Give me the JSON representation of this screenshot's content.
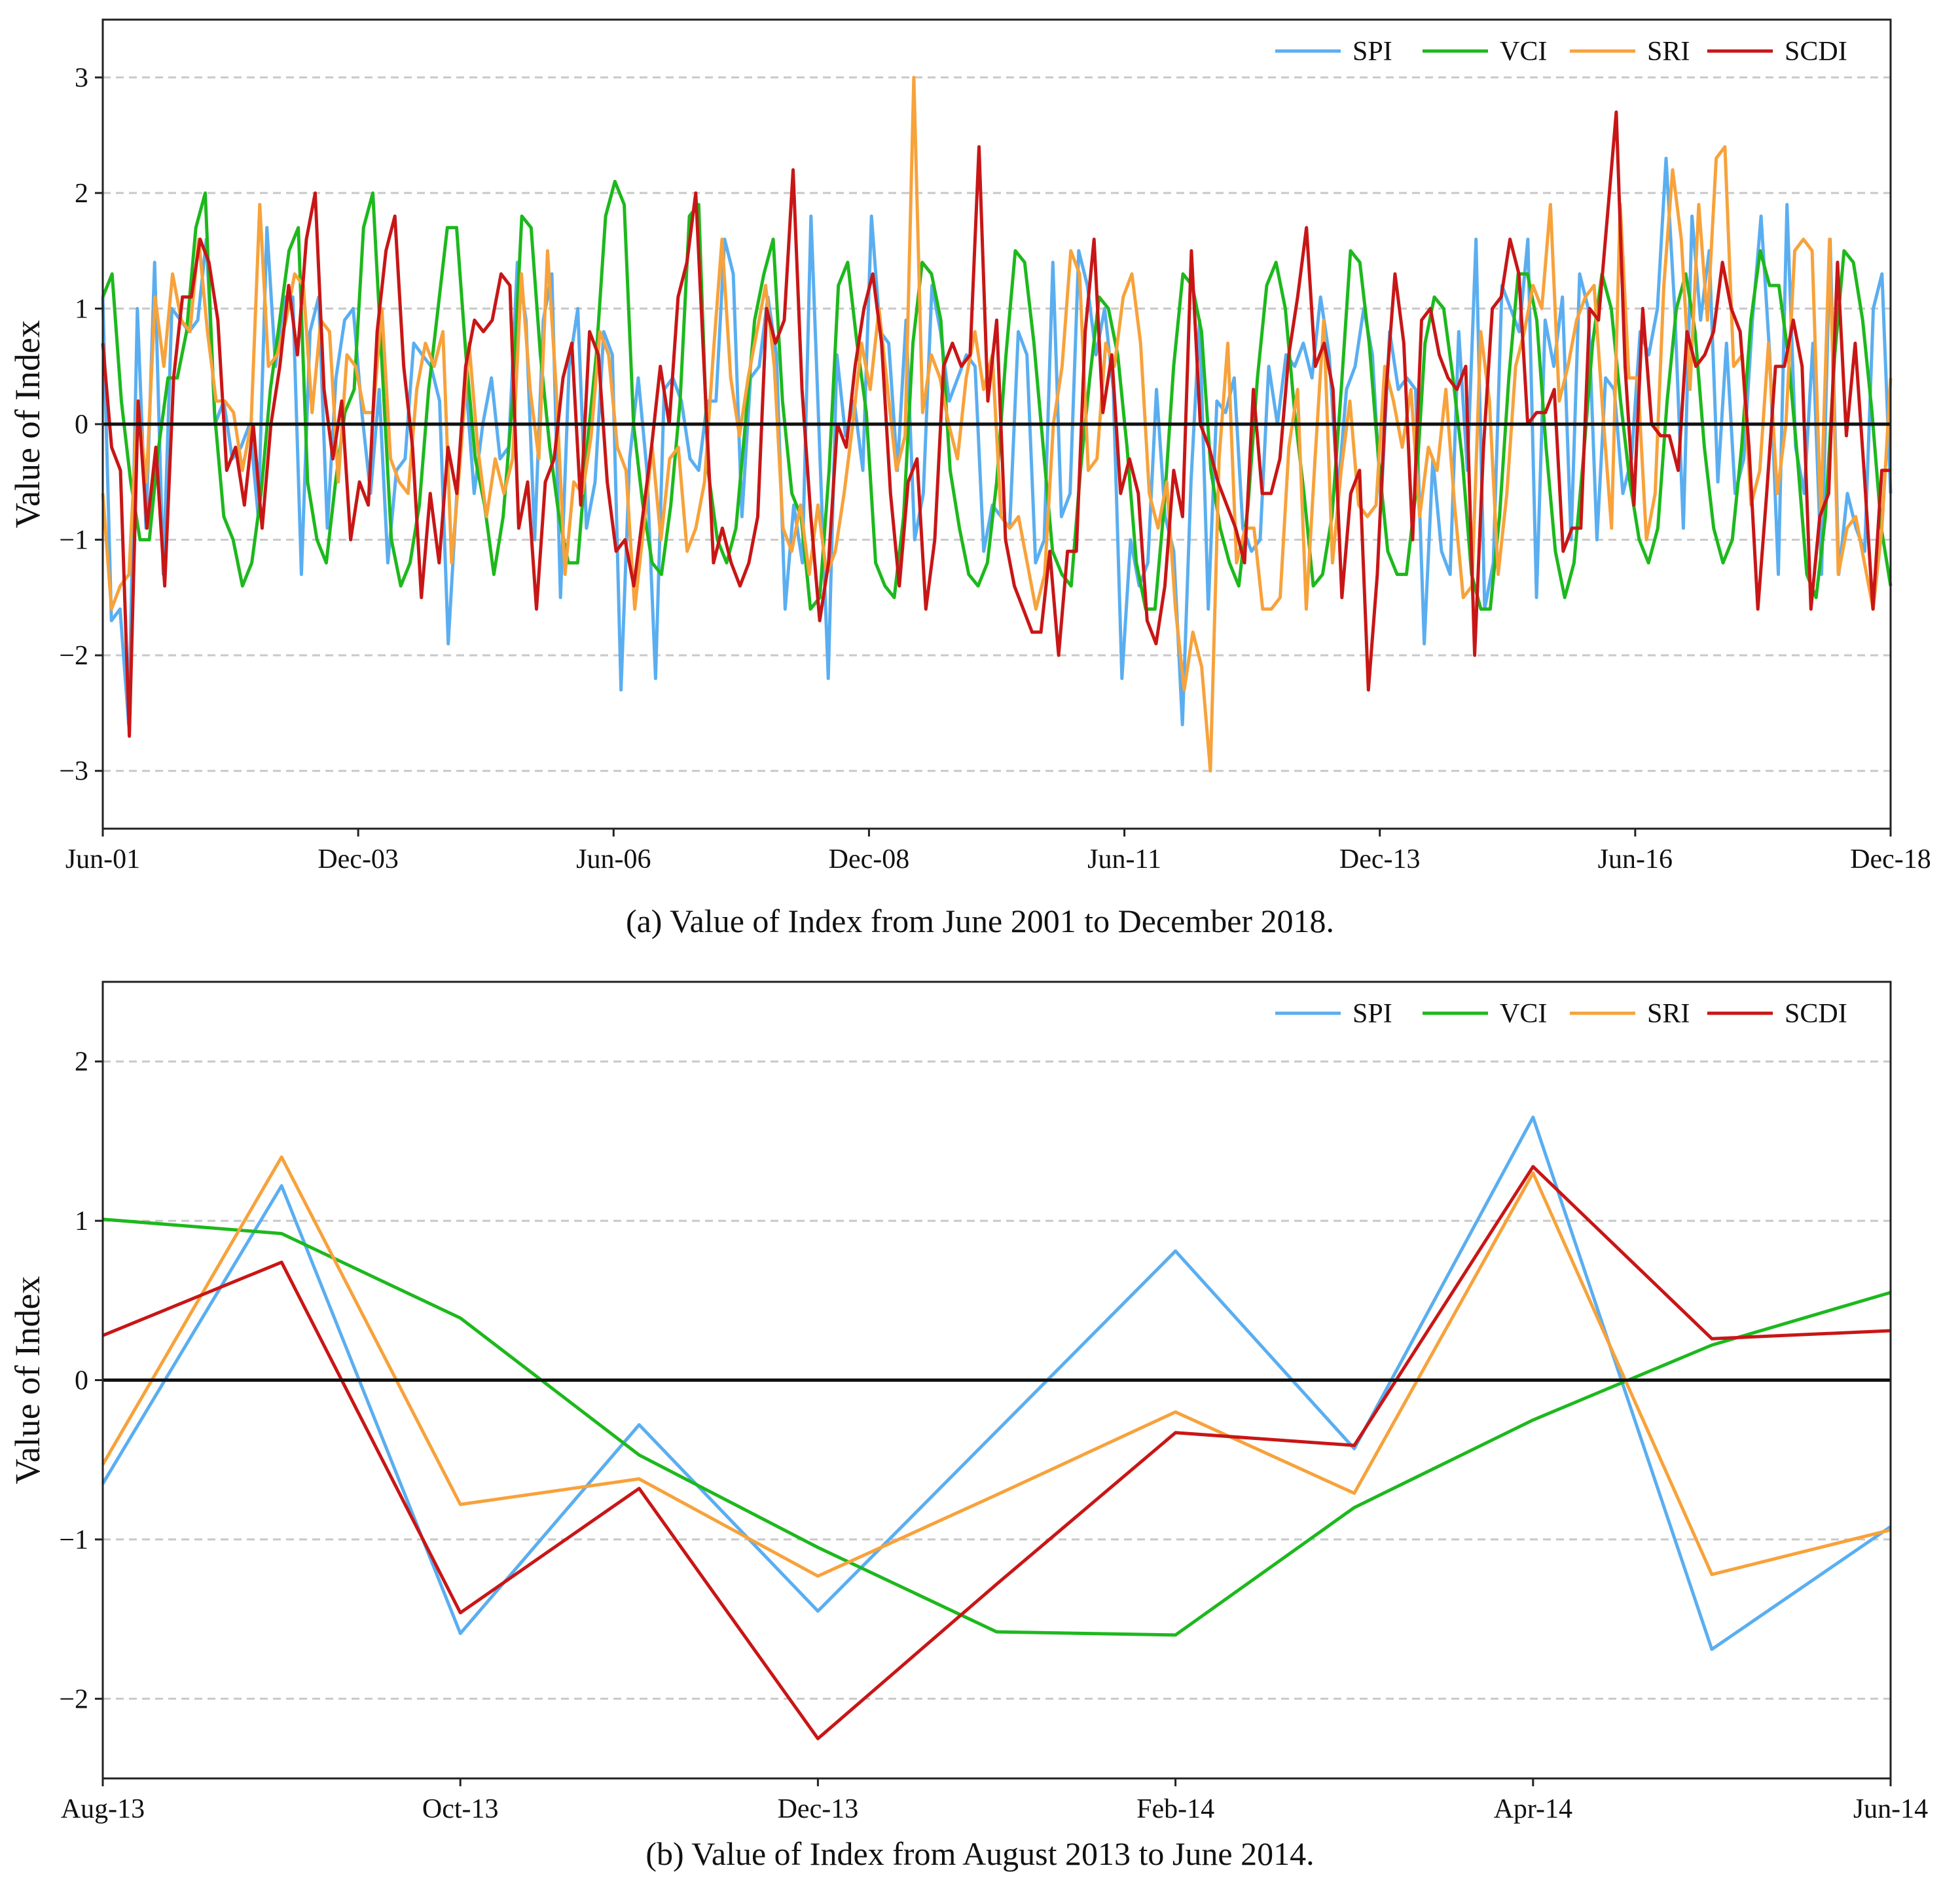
{
  "chart_data": [
    {
      "id": "a",
      "type": "line",
      "caption": "(a) Value of Index from June 2001 to December 2018.",
      "ylabel": "Value of Index",
      "ylim": [
        -3.5,
        3.5
      ],
      "yticks": [
        3,
        2,
        1,
        0,
        -1,
        -2,
        -3
      ],
      "ytick_labels": [
        "3",
        "2",
        "1",
        "0",
        "−1",
        "−2",
        "−3"
      ],
      "xlim": [
        0,
        210
      ],
      "xticks": [
        0,
        30,
        60,
        90,
        120,
        150,
        180,
        210
      ],
      "xtick_labels": [
        "Jun-01",
        "Dec-03",
        "Jun-06",
        "Dec-08",
        "Jun-11",
        "Dec-13",
        "Jun-16",
        "Dec-18"
      ],
      "grid": "horizontal dashed",
      "legend": "top-right",
      "series": [
        {
          "name": "SPI",
          "color": "#5aaef0",
          "values": [
            1.1,
            -1.7,
            -1.6,
            -2.6,
            1.0,
            -0.9,
            1.4,
            -1.3,
            1.0,
            0.9,
            0.8,
            0.9,
            1.6,
            0.0,
            0.2,
            -0.3,
            -0.2,
            0.0,
            -0.8,
            1.7,
            0.5,
            1.1,
            1.1,
            -1.3,
            0.8,
            1.1,
            -0.9,
            0.4,
            0.9,
            1.0,
            0.1,
            -0.6,
            0.3,
            -1.2,
            -0.4,
            -0.3,
            0.7,
            0.6,
            0.5,
            0.2,
            -1.9,
            -0.6,
            0.4,
            -0.6,
            0.0,
            0.4,
            -0.3,
            -0.2,
            1.4,
            0.9,
            -1.0,
            0.9,
            1.3,
            -1.5,
            0.5,
            1.0,
            -0.9,
            -0.5,
            0.8,
            0.6,
            -2.3,
            -0.3,
            0.4,
            -0.4,
            -2.2,
            0.3,
            0.4,
            0.2,
            -0.3,
            -0.4,
            0.2,
            0.2,
            1.6,
            1.3,
            -0.8,
            0.4,
            0.5,
            1.1,
            0.6,
            -1.6,
            -0.7,
            -1.2,
            1.8,
            -0.2,
            -2.2,
            0.6,
            -0.1,
            0.2,
            -0.4,
            1.8,
            0.8,
            0.7,
            -0.4,
            0.9,
            -1.0,
            -0.6,
            1.2,
            0.8,
            0.2,
            0.4,
            0.6,
            0.5,
            -1.1,
            -0.7,
            -0.8,
            -0.9,
            0.8,
            0.6,
            -1.2,
            -1.0,
            1.4,
            -0.8,
            -0.6,
            1.5,
            1.2,
            0.6,
            1.0,
            0.3,
            -2.2,
            -1.0,
            -1.4,
            -1.2,
            0.3,
            -0.8,
            -1.1,
            -2.6,
            -0.5,
            0.9,
            -1.6,
            0.2,
            0.1,
            0.4,
            -0.9,
            -1.1,
            -1.0,
            0.5,
            0.0,
            0.6,
            0.5,
            0.7,
            0.4,
            1.1,
            0.6,
            -0.6,
            0.3,
            0.5,
            1.0,
            0.6,
            -0.7,
            0.8,
            0.3,
            0.4,
            0.3,
            -1.9,
            -0.3,
            -1.1,
            -1.3,
            0.8,
            -0.4,
            1.6,
            -1.6,
            -1.2,
            1.2,
            1.0,
            0.8,
            1.6,
            -1.5,
            0.9,
            0.5,
            1.1,
            -1.0,
            1.3,
            1.0,
            -1.0,
            0.4,
            0.3,
            -0.6,
            -0.3,
            0.8,
            0.6,
            1.0,
            2.3,
            1.0,
            -0.9,
            1.8,
            0.9,
            1.5,
            -0.5,
            0.7,
            -0.6,
            -0.3,
            0.9,
            1.8,
            0.6,
            -1.3,
            1.9,
            -0.2,
            -0.6,
            0.7,
            -1.3,
            1.6,
            -1.3,
            -0.6,
            -0.9,
            -1.1,
            1.0,
            1.3,
            -0.6
          ]
        },
        {
          "name": "VCI",
          "color": "#1db81d",
          "values": [
            1.1,
            1.3,
            0.2,
            -0.5,
            -1.0,
            -1.0,
            -0.2,
            0.4,
            0.4,
            0.8,
            1.7,
            2.0,
            0.1,
            -0.8,
            -1.0,
            -1.4,
            -1.2,
            -0.6,
            0.3,
            0.9,
            1.5,
            1.7,
            -0.5,
            -1.0,
            -1.2,
            -0.5,
            0.1,
            0.3,
            1.7,
            2.0,
            0.5,
            -1.0,
            -1.4,
            -1.2,
            -0.7,
            0.3,
            1.0,
            1.7,
            1.7,
            0.6,
            -0.3,
            -0.7,
            -1.3,
            -0.8,
            0.2,
            1.8,
            1.7,
            0.6,
            -0.2,
            -0.8,
            -1.2,
            -1.2,
            -0.2,
            0.6,
            1.8,
            2.1,
            1.9,
            0.0,
            -0.7,
            -1.2,
            -1.3,
            -0.7,
            0.2,
            1.8,
            1.9,
            -0.4,
            -1.0,
            -1.2,
            -0.9,
            0.0,
            0.9,
            1.3,
            1.6,
            0.2,
            -0.6,
            -0.8,
            -1.6,
            -1.5,
            -0.4,
            1.2,
            1.4,
            0.7,
            0.1,
            -1.2,
            -1.4,
            -1.5,
            -0.8,
            0.7,
            1.4,
            1.3,
            0.9,
            -0.4,
            -0.9,
            -1.3,
            -1.4,
            -1.2,
            -0.5,
            0.6,
            1.5,
            1.4,
            0.7,
            -0.2,
            -1.1,
            -1.3,
            -1.4,
            -0.4,
            0.4,
            1.1,
            1.0,
            0.6,
            -0.2,
            -1.2,
            -1.6,
            -1.6,
            -0.7,
            0.5,
            1.3,
            1.2,
            0.8,
            -0.4,
            -0.9,
            -1.2,
            -1.4,
            -0.7,
            0.4,
            1.2,
            1.4,
            1.0,
            0.1,
            -0.6,
            -1.4,
            -1.3,
            -0.8,
            0.3,
            1.5,
            1.4,
            0.7,
            -0.3,
            -1.1,
            -1.3,
            -1.3,
            -0.6,
            0.7,
            1.1,
            1.0,
            0.4,
            -0.3,
            -1.3,
            -1.6,
            -1.6,
            -0.8,
            0.4,
            1.3,
            1.3,
            0.9,
            -0.2,
            -1.1,
            -1.5,
            -1.2,
            -0.3,
            0.7,
            1.3,
            1.0,
            0.2,
            -0.5,
            -1.0,
            -1.2,
            -0.9,
            0.2,
            1.0,
            1.3,
            0.8,
            -0.2,
            -0.9,
            -1.2,
            -1.0,
            -0.2,
            0.9,
            1.5,
            1.2,
            1.2,
            0.6,
            -0.3,
            -1.3,
            -1.5,
            -0.8,
            0.6,
            1.5,
            1.4,
            0.9,
            0.1,
            -0.9,
            -1.4
          ]
        },
        {
          "name": "SRI",
          "color": "#f7a23b",
          "values": [
            -0.6,
            -1.6,
            -1.4,
            -1.3,
            0.2,
            -0.5,
            1.1,
            0.5,
            1.3,
            0.9,
            0.8,
            1.6,
            0.8,
            0.2,
            0.2,
            0.1,
            -0.4,
            0.0,
            1.9,
            0.5,
            0.6,
            0.9,
            1.3,
            1.2,
            0.1,
            0.9,
            0.8,
            -0.5,
            0.6,
            0.5,
            0.1,
            0.1,
            1.0,
            -0.3,
            -0.5,
            -0.6,
            0.3,
            0.7,
            0.5,
            0.8,
            -1.2,
            -0.3,
            0.7,
            -0.2,
            -0.8,
            -0.3,
            -0.6,
            -0.3,
            1.3,
            0.3,
            -0.3,
            1.5,
            0.3,
            -1.3,
            -0.5,
            -0.6,
            -0.1,
            0.8,
            0.6,
            -0.2,
            -0.4,
            -1.6,
            -0.9,
            -0.2,
            -1.0,
            -0.3,
            -0.2,
            -1.1,
            -0.9,
            -0.5,
            0.6,
            1.6,
            0.4,
            -0.1,
            0.4,
            0.8,
            1.2,
            0.5,
            -0.9,
            -1.1,
            -0.7,
            -1.3,
            -0.7,
            -1.3,
            -1.1,
            -0.6,
            0.0,
            0.7,
            0.3,
            1.0,
            0.3,
            -0.4,
            -0.1,
            3.0,
            0.1,
            0.6,
            0.4,
            0.0,
            -0.3,
            0.4,
            0.8,
            0.3,
            0.6,
            -0.8,
            -0.9,
            -0.8,
            -1.2,
            -1.6,
            -1.3,
            0.0,
            0.5,
            1.5,
            1.3,
            -0.4,
            -0.3,
            0.7,
            0.5,
            1.1,
            1.3,
            0.7,
            -0.6,
            -0.9,
            -0.5,
            -1.6,
            -2.3,
            -1.8,
            -2.1,
            -3.0,
            -0.3,
            0.7,
            -1.2,
            -0.9,
            -0.9,
            -1.6,
            -1.6,
            -1.5,
            -0.2,
            0.3,
            -1.6,
            -0.3,
            0.9,
            -1.2,
            -0.4,
            0.2,
            -0.7,
            -0.8,
            -0.7,
            0.5,
            0.2,
            -0.2,
            0.3,
            -0.8,
            -0.2,
            -0.4,
            0.3,
            -0.7,
            -1.5,
            -1.4,
            0.8,
            0.2,
            -1.3,
            -0.6,
            0.5,
            0.8,
            1.2,
            1.0,
            1.9,
            0.2,
            0.5,
            0.9,
            1.1,
            1.2,
            0.1,
            -0.9,
            1.9,
            0.4,
            0.4,
            -1.0,
            -0.6,
            1.2,
            2.2,
            1.6,
            0.3,
            1.9,
            0.9,
            2.3,
            2.4,
            0.5,
            0.6,
            -0.7,
            -0.4,
            0.7,
            -0.6,
            0.0,
            1.5,
            1.6,
            1.5,
            -0.8,
            1.6,
            -1.3,
            -0.9,
            -0.8,
            -1.2,
            -1.6,
            -0.9,
            0.4
          ]
        },
        {
          "name": "SCDI",
          "color": "#c81616",
          "values": [
            0.7,
            -0.2,
            -0.4,
            -2.7,
            0.2,
            -0.9,
            -0.2,
            -1.4,
            0.4,
            1.1,
            1.1,
            1.6,
            1.4,
            0.9,
            -0.4,
            -0.2,
            -0.7,
            0.0,
            -0.9,
            0.0,
            0.5,
            1.2,
            0.6,
            1.6,
            2.0,
            0.3,
            -0.3,
            0.2,
            -1.0,
            -0.5,
            -0.7,
            0.8,
            1.5,
            1.8,
            0.5,
            -0.2,
            -1.5,
            -0.6,
            -1.2,
            -0.2,
            -0.6,
            0.5,
            0.9,
            0.8,
            0.9,
            1.3,
            1.2,
            -0.9,
            -0.5,
            -1.6,
            -0.5,
            -0.3,
            0.4,
            0.7,
            -0.7,
            0.8,
            0.6,
            -0.5,
            -1.1,
            -1.0,
            -1.4,
            -0.8,
            -0.2,
            0.5,
            0.0,
            1.1,
            1.4,
            2.0,
            0.4,
            -1.2,
            -0.9,
            -1.2,
            -1.4,
            -1.2,
            -0.8,
            1.0,
            0.7,
            0.9,
            2.2,
            0.3,
            -0.8,
            -1.7,
            -1.2,
            0.0,
            -0.2,
            0.5,
            1.0,
            1.3,
            0.7,
            -0.6,
            -1.4,
            -0.5,
            -0.3,
            -1.6,
            -1.0,
            0.5,
            0.7,
            0.5,
            0.6,
            2.4,
            0.2,
            0.9,
            -1.0,
            -1.4,
            -1.6,
            -1.8,
            -1.8,
            -1.1,
            -2.0,
            -1.1,
            -1.1,
            0.8,
            1.6,
            0.1,
            0.6,
            -0.6,
            -0.3,
            -0.6,
            -1.7,
            -1.9,
            -1.4,
            -0.4,
            -0.8,
            1.5,
            0.0,
            -0.2,
            -0.5,
            -0.7,
            -0.9,
            -1.2,
            0.3,
            -0.6,
            -0.6,
            -0.3,
            0.6,
            1.1,
            1.7,
            0.5,
            0.7,
            0.3,
            -1.5,
            -0.6,
            -0.4,
            -2.3,
            -1.3,
            0.3,
            1.3,
            0.7,
            -1.0,
            0.9,
            1.0,
            0.6,
            0.4,
            0.3,
            0.5,
            -2.0,
            -0.2,
            1.0,
            1.1,
            1.6,
            1.3,
            0.0,
            0.1,
            0.1,
            0.3,
            -1.1,
            -0.9,
            -0.9,
            1.0,
            0.9,
            1.8,
            2.7,
            0.5,
            -0.7,
            1.0,
            0.0,
            -0.1,
            -0.1,
            -0.4,
            0.8,
            0.5,
            0.6,
            0.8,
            1.4,
            1.0,
            0.8,
            -0.2,
            -1.6,
            -0.6,
            0.5,
            0.5,
            0.9,
            0.5,
            -1.6,
            -0.8,
            -0.6,
            1.4,
            -0.1,
            0.7,
            -0.4,
            -1.6,
            -0.4,
            -0.4
          ]
        }
      ]
    },
    {
      "id": "b",
      "type": "line",
      "caption": "(b) Value of Index from August 2013 to June 2014.",
      "ylabel": "Value of Index",
      "ylim": [
        -2.5,
        2.5
      ],
      "yticks": [
        2,
        1,
        0,
        -1,
        -2
      ],
      "ytick_labels": [
        "2",
        "1",
        "0",
        "−1",
        "−2"
      ],
      "xlim": [
        0,
        10
      ],
      "xticks": [
        0,
        2,
        4,
        6,
        8,
        10
      ],
      "xtick_labels": [
        "Aug-13",
        "Oct-13",
        "Dec-13",
        "Feb-14",
        "Apr-14",
        "Jun-14"
      ],
      "grid": "horizontal dashed",
      "legend": "top-right",
      "series": [
        {
          "name": "SPI",
          "color": "#5aaef0",
          "values": [
            -0.65,
            1.22,
            -1.59,
            -0.28,
            -1.45,
            -0.32,
            0.81,
            -0.43,
            1.65,
            -1.69,
            -0.92
          ]
        },
        {
          "name": "VCI",
          "color": "#1db81d",
          "values": [
            1.01,
            0.92,
            0.39,
            -0.47,
            -1.05,
            -1.58,
            -1.6,
            -0.8,
            -0.25,
            0.22,
            0.55
          ]
        },
        {
          "name": "SRI",
          "color": "#f7a23b",
          "values": [
            -0.53,
            1.4,
            -0.78,
            -0.62,
            -1.23,
            -0.72,
            -0.2,
            -0.71,
            1.3,
            -1.22,
            -0.94
          ]
        },
        {
          "name": "SCDI",
          "color": "#c81616",
          "values": [
            0.28,
            0.74,
            -1.46,
            -0.68,
            -2.25,
            -1.28,
            -0.33,
            -0.41,
            1.34,
            0.26,
            0.31
          ]
        }
      ]
    }
  ]
}
